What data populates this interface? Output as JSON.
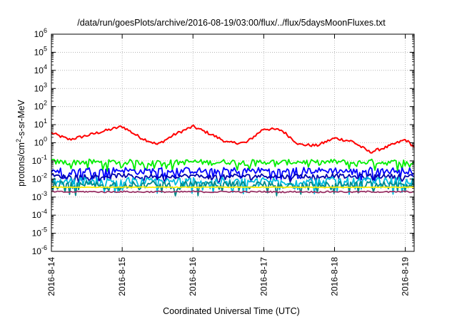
{
  "chart_data": {
    "type": "line",
    "title": "/data/run/goesPlots/archive/2016-08-19/03:00/flux/../flux/5daysMoonFluxes.txt",
    "xlabel": "Coordinated Universal Time (UTC)",
    "ylabel_prefix": "protons/cm",
    "ylabel_sup": "2",
    "ylabel_suffix": "-s-sr-MeV",
    "y_scale": "log",
    "grid": true,
    "xlim": [
      "2016-08-14",
      "2016-08-19 03:00"
    ],
    "ylim": [
      1e-06,
      1000000.0
    ],
    "x_ticks": [
      "2016-8-14",
      "2016-8-15",
      "2016-8-16",
      "2016-8-17",
      "2016-8-18",
      "2016-8-19"
    ],
    "y_ticks": [
      {
        "base": "10",
        "exp": "-6"
      },
      {
        "base": "10",
        "exp": "-5"
      },
      {
        "base": "10",
        "exp": "-4"
      },
      {
        "base": "10",
        "exp": "-3"
      },
      {
        "base": "10",
        "exp": "-2"
      },
      {
        "base": "10",
        "exp": "-1"
      },
      {
        "base": "10",
        "exp": "0"
      },
      {
        "base": "10",
        "exp": "1"
      },
      {
        "base": "10",
        "exp": "2"
      },
      {
        "base": "10",
        "exp": "3"
      },
      {
        "base": "10",
        "exp": "4"
      },
      {
        "base": "10",
        "exp": "5"
      },
      {
        "base": "10",
        "exp": "6"
      }
    ],
    "x_days": [
      0,
      0.25,
      0.5,
      0.75,
      1,
      1.25,
      1.5,
      1.75,
      2,
      2.25,
      2.5,
      2.75,
      3,
      3.25,
      3.5,
      3.75,
      4,
      4.25,
      4.5,
      4.75,
      5,
      5.125
    ],
    "series": [
      {
        "color": "#ff0000",
        "noise": 0.08,
        "values": [
          3.5,
          1.5,
          2.5,
          4.5,
          8,
          2,
          0.8,
          3,
          8,
          3,
          1,
          1,
          6,
          5,
          0.8,
          0.7,
          1.8,
          1.2,
          0.3,
          0.6,
          1.5,
          0.6
        ]
      },
      {
        "color": "#00ee00",
        "noise": 0.15,
        "values": [
          0.09,
          0.08,
          0.09,
          0.08,
          0.09,
          0.08,
          0.09,
          0.08,
          0.09,
          0.08,
          0.09,
          0.08,
          0.09,
          0.08,
          0.09,
          0.08,
          0.09,
          0.08,
          0.09,
          0.08,
          0.09,
          0.08
        ]
      },
      {
        "color": "#0000ff",
        "noise": 0.18,
        "values": [
          0.03,
          0.025,
          0.03,
          0.028,
          0.032,
          0.025,
          0.03,
          0.028,
          0.03,
          0.025,
          0.03,
          0.028,
          0.03,
          0.025,
          0.03,
          0.028,
          0.03,
          0.025,
          0.03,
          0.028,
          0.03,
          0.025
        ]
      },
      {
        "color": "#0000aa",
        "noise": 0.12,
        "values": [
          0.015,
          0.013,
          0.015,
          0.014,
          0.016,
          0.013,
          0.015,
          0.014,
          0.015,
          0.013,
          0.015,
          0.014,
          0.015,
          0.013,
          0.015,
          0.014,
          0.015,
          0.013,
          0.015,
          0.014,
          0.015,
          0.013
        ]
      },
      {
        "color": "#00bbdd",
        "noise": 0.22,
        "values": [
          0.008,
          0.007,
          0.008,
          0.007,
          0.008,
          0.007,
          0.008,
          0.007,
          0.008,
          0.007,
          0.008,
          0.007,
          0.008,
          0.007,
          0.008,
          0.007,
          0.008,
          0.007,
          0.008,
          0.007,
          0.008,
          0.007
        ]
      },
      {
        "color": "#008888",
        "noise": 0.2,
        "values": [
          0.005,
          0.0045,
          0.005,
          0.0045,
          0.005,
          0.0045,
          0.005,
          0.0045,
          0.005,
          0.0045,
          0.005,
          0.0045,
          0.005,
          0.0045,
          0.005,
          0.0045,
          0.005,
          0.0045,
          0.005,
          0.0045,
          0.005,
          0.0045
        ]
      },
      {
        "color": "#ffee00",
        "noise": 0.02,
        "values": [
          0.0035,
          0.0035,
          0.0035,
          0.0035,
          0.0035,
          0.0035,
          0.0035,
          0.0035,
          0.0035,
          0.0035,
          0.0035,
          0.0035,
          0.0035,
          0.0035,
          0.0035,
          0.0035,
          0.0035,
          0.0035,
          0.0035,
          0.0035,
          0.0035,
          0.0035
        ]
      },
      {
        "color": "#993366",
        "noise": 0.04,
        "values": [
          0.002,
          0.0019,
          0.002,
          0.0019,
          0.002,
          0.0019,
          0.002,
          0.0019,
          0.002,
          0.0019,
          0.002,
          0.0019,
          0.002,
          0.0019,
          0.002,
          0.0019,
          0.002,
          0.0019,
          0.002,
          0.0019,
          0.002,
          0.0019
        ]
      }
    ]
  }
}
